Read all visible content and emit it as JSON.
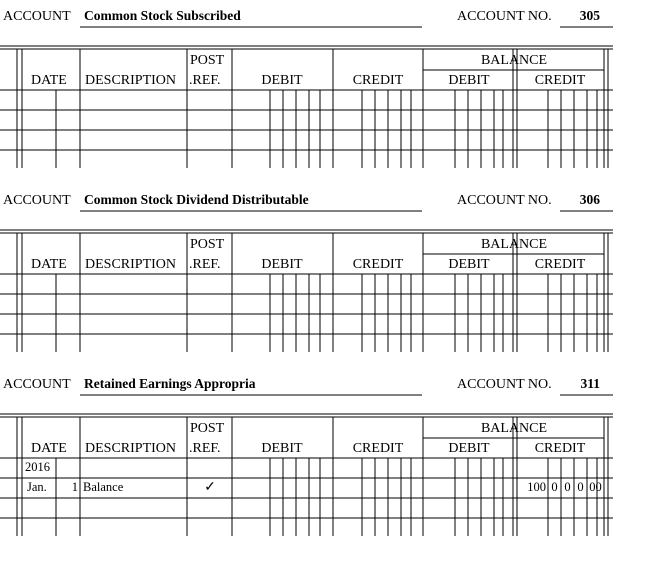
{
  "labels": {
    "account": "ACCOUNT",
    "account_no": "ACCOUNT NO.",
    "date": "DATE",
    "description": "DESCRIPTION",
    "post": "POST",
    "ref": ".REF.",
    "debit": "DEBIT",
    "credit": "CREDIT",
    "balance": "BALANCE"
  },
  "accounts": [
    {
      "name": "Common Stock Subscribed",
      "number": "305",
      "rows": []
    },
    {
      "name": "Common Stock Dividend Distributable",
      "number": "306",
      "rows": []
    },
    {
      "name": "Retained Earnings Appropria",
      "number": "311",
      "rows": [
        {
          "date": "2016"
        },
        {
          "month": "Jan.",
          "day": "1",
          "description": "Balance",
          "post_ref": "✓",
          "balance_credit": [
            "100",
            "0",
            "0",
            "0",
            "00"
          ]
        }
      ]
    }
  ]
}
